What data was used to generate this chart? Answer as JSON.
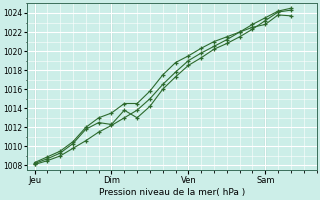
{
  "background_color": "#cceee8",
  "plot_bg_color": "#cceee8",
  "grid_color_major": "#ffffff",
  "grid_color_minor": "#ddf5f0",
  "line_color": "#2d6a2d",
  "marker_color": "#2d6a2d",
  "xlabel_text": "Pression niveau de la mer( hPa )",
  "ylim": [
    1007.5,
    1025.0
  ],
  "yticks": [
    1008,
    1010,
    1012,
    1014,
    1016,
    1018,
    1020,
    1022,
    1024
  ],
  "xtick_labels": [
    "Jeu",
    "Dim",
    "Ven",
    "Sam"
  ],
  "xtick_positions": [
    0.0,
    3.0,
    6.0,
    9.0
  ],
  "xlim": [
    -0.3,
    11.0
  ],
  "vline_color": "#3a6e5a",
  "series": [
    {
      "x": [
        0.0,
        0.5,
        1.0,
        1.5,
        2.0,
        2.5,
        3.0,
        3.5,
        4.0,
        4.5,
        5.0,
        5.5,
        6.0,
        6.5,
        7.0,
        7.5,
        8.0,
        8.5,
        9.0,
        9.5,
        10.0
      ],
      "y": [
        1008.1,
        1008.5,
        1009.0,
        1009.8,
        1010.6,
        1011.5,
        1012.2,
        1013.0,
        1013.8,
        1015.0,
        1016.5,
        1017.8,
        1019.0,
        1019.8,
        1020.5,
        1021.2,
        1022.0,
        1022.5,
        1022.8,
        1023.8,
        1023.7
      ]
    },
    {
      "x": [
        0.0,
        0.5,
        1.0,
        1.5,
        2.0,
        2.5,
        3.0,
        3.5,
        4.0,
        4.5,
        5.0,
        5.5,
        6.0,
        6.5,
        7.0,
        7.5,
        8.0,
        8.5,
        9.0,
        9.5,
        10.0
      ],
      "y": [
        1008.2,
        1008.7,
        1009.3,
        1010.3,
        1011.8,
        1012.5,
        1012.3,
        1013.8,
        1013.0,
        1014.2,
        1016.0,
        1017.3,
        1018.5,
        1019.3,
        1020.2,
        1020.8,
        1021.5,
        1022.3,
        1023.2,
        1024.1,
        1024.3
      ]
    },
    {
      "x": [
        0.0,
        0.5,
        1.0,
        1.5,
        2.0,
        2.5,
        3.0,
        3.5,
        4.0,
        4.5,
        5.0,
        5.5,
        6.0,
        6.5,
        7.0,
        7.5,
        8.0,
        8.5,
        9.0,
        9.5,
        10.0
      ],
      "y": [
        1008.3,
        1008.9,
        1009.5,
        1010.5,
        1012.0,
        1013.0,
        1013.5,
        1014.5,
        1014.5,
        1015.8,
        1017.5,
        1018.8,
        1019.5,
        1020.3,
        1021.0,
        1021.5,
        1022.0,
        1022.8,
        1023.5,
        1024.2,
        1024.5
      ]
    }
  ]
}
